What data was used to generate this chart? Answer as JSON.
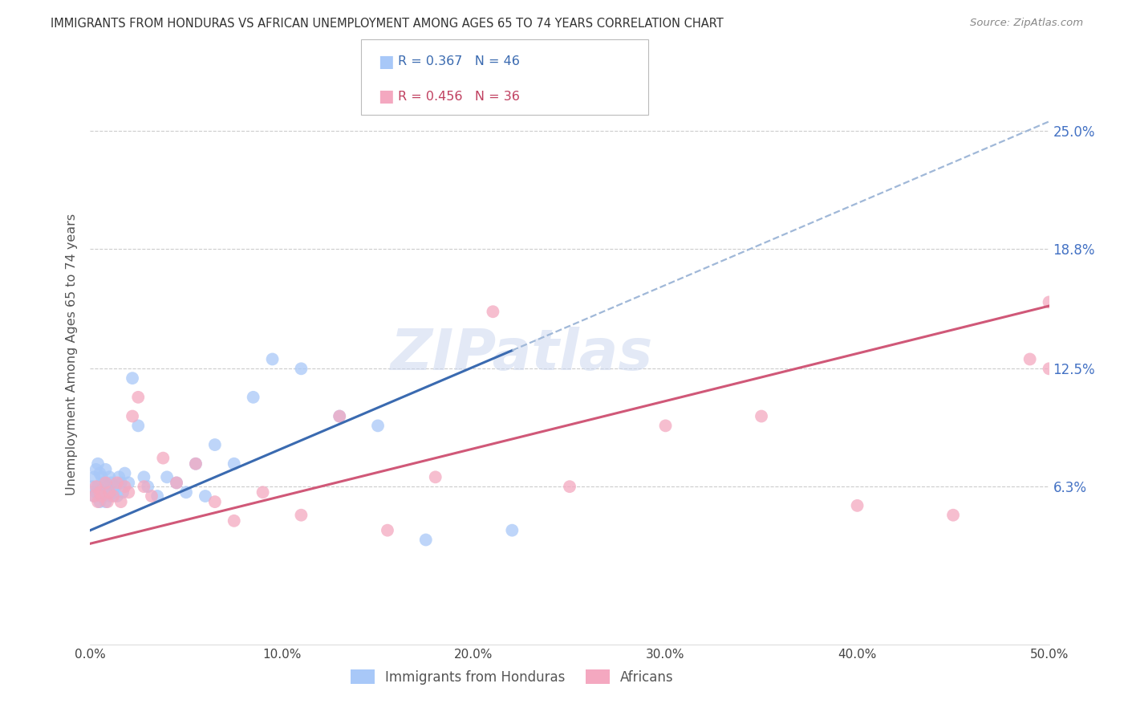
{
  "title": "IMMIGRANTS FROM HONDURAS VS AFRICAN UNEMPLOYMENT AMONG AGES 65 TO 74 YEARS CORRELATION CHART",
  "source": "Source: ZipAtlas.com",
  "ylabel": "Unemployment Among Ages 65 to 74 years",
  "xlim": [
    0.0,
    0.5
  ],
  "ylim": [
    -0.02,
    0.285
  ],
  "xtick_labels": [
    "0.0%",
    "10.0%",
    "20.0%",
    "30.0%",
    "40.0%",
    "50.0%"
  ],
  "xtick_vals": [
    0.0,
    0.1,
    0.2,
    0.3,
    0.4,
    0.5
  ],
  "ytick_labels": [
    "6.3%",
    "12.5%",
    "18.8%",
    "25.0%"
  ],
  "ytick_vals": [
    0.063,
    0.125,
    0.188,
    0.25
  ],
  "grid_color": "#cccccc",
  "background_color": "#ffffff",
  "series1_color": "#a8c8f8",
  "series2_color": "#f4a8c0",
  "series1_label": "Immigrants from Honduras",
  "series2_label": "Africans",
  "R1": "0.367",
  "N1": "46",
  "R2": "0.456",
  "N2": "36",
  "trendline1_color": "#3a6ab0",
  "trendline2_color": "#d05878",
  "trendline1_ext_color": "#a0b8d8",
  "watermark": "ZIPatlas",
  "series1_x": [
    0.001,
    0.002,
    0.002,
    0.003,
    0.003,
    0.004,
    0.004,
    0.005,
    0.005,
    0.006,
    0.006,
    0.007,
    0.007,
    0.008,
    0.008,
    0.009,
    0.01,
    0.01,
    0.011,
    0.012,
    0.013,
    0.014,
    0.015,
    0.016,
    0.017,
    0.018,
    0.02,
    0.022,
    0.025,
    0.028,
    0.03,
    0.035,
    0.04,
    0.045,
    0.05,
    0.055,
    0.06,
    0.065,
    0.075,
    0.085,
    0.095,
    0.11,
    0.13,
    0.15,
    0.175,
    0.22
  ],
  "series1_y": [
    0.063,
    0.068,
    0.058,
    0.072,
    0.06,
    0.075,
    0.063,
    0.07,
    0.055,
    0.068,
    0.058,
    0.065,
    0.06,
    0.072,
    0.055,
    0.063,
    0.068,
    0.058,
    0.065,
    0.06,
    0.063,
    0.058,
    0.068,
    0.065,
    0.06,
    0.07,
    0.065,
    0.12,
    0.095,
    0.068,
    0.063,
    0.058,
    0.068,
    0.065,
    0.06,
    0.075,
    0.058,
    0.085,
    0.075,
    0.11,
    0.13,
    0.125,
    0.1,
    0.095,
    0.035,
    0.04
  ],
  "series2_x": [
    0.002,
    0.003,
    0.004,
    0.005,
    0.006,
    0.008,
    0.009,
    0.01,
    0.012,
    0.014,
    0.016,
    0.018,
    0.02,
    0.022,
    0.025,
    0.028,
    0.032,
    0.038,
    0.045,
    0.055,
    0.065,
    0.075,
    0.09,
    0.11,
    0.13,
    0.155,
    0.18,
    0.21,
    0.25,
    0.3,
    0.35,
    0.4,
    0.45,
    0.49,
    0.5,
    0.5
  ],
  "series2_y": [
    0.058,
    0.063,
    0.055,
    0.06,
    0.058,
    0.065,
    0.055,
    0.06,
    0.058,
    0.065,
    0.055,
    0.063,
    0.06,
    0.1,
    0.11,
    0.063,
    0.058,
    0.078,
    0.065,
    0.075,
    0.055,
    0.045,
    0.06,
    0.048,
    0.1,
    0.04,
    0.068,
    0.155,
    0.063,
    0.095,
    0.1,
    0.053,
    0.048,
    0.13,
    0.125,
    0.16
  ]
}
